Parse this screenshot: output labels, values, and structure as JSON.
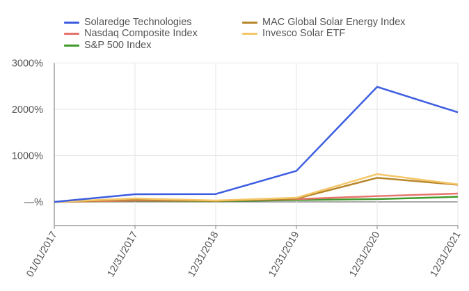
{
  "chart_data": {
    "type": "line",
    "title": "",
    "xlabel": "",
    "ylabel": "",
    "categories": [
      "01/01/2017",
      "12/31/2017",
      "12/31/2018",
      "12/31/2019",
      "12/31/2020",
      "12/31/2021"
    ],
    "ylim": [
      -500,
      3000
    ],
    "yticks": [
      0,
      1000,
      2000,
      3000
    ],
    "ytick_labels": [
      "—%",
      "1000%",
      "2000%",
      "3000%"
    ],
    "grid": true,
    "legend_position": "top",
    "series": [
      {
        "name": "Solaredge Technologies",
        "color": "#3c5de0",
        "values": [
          0,
          165,
          170,
          670,
          2485,
          1935
        ]
      },
      {
        "name": "Nasdaq Composite Index",
        "color": "#e8726c",
        "values": [
          0,
          28,
          25,
          60,
          125,
          180
        ]
      },
      {
        "name": "S&P 500 Index",
        "color": "#3f9a2a",
        "values": [
          0,
          20,
          15,
          40,
          60,
          110
        ]
      },
      {
        "name": "MAC Global Solar Energy Index",
        "color": "#b8862a",
        "values": [
          0,
          50,
          20,
          70,
          520,
          370
        ]
      },
      {
        "name": "Invesco Solar ETF",
        "color": "#f5c76a",
        "values": [
          0,
          75,
          30,
          90,
          600,
          380
        ]
      }
    ]
  }
}
